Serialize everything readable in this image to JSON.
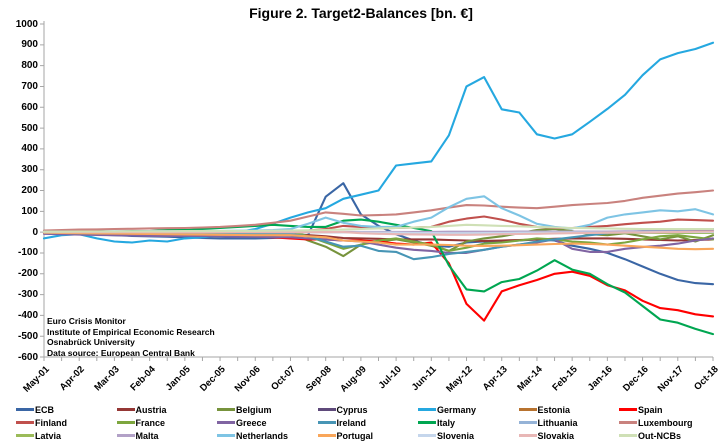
{
  "chart_data": {
    "type": "line",
    "title": "Figure 2. Target2-Balances [bn. €]",
    "xlabel": "",
    "ylabel": "",
    "ylim": [
      -600,
      1000
    ],
    "ytick_step": 100,
    "grid": false,
    "legend_position": "bottom",
    "background": "#FFFFFF",
    "axis_color": "#A6A6A6",
    "text_color": "#000000",
    "x_tick_labels": [
      "May-01",
      "Apr-02",
      "Mar-03",
      "Feb-04",
      "Jan-05",
      "Dec-05",
      "Nov-06",
      "Oct-07",
      "Sep-08",
      "Aug-09",
      "Jul-10",
      "Jun-11",
      "May-12",
      "Apr-13",
      "Mar-14",
      "Feb-15",
      "Jan-16",
      "Dec-16",
      "Nov-17",
      "Oct-18"
    ],
    "sampling_note": "values in bn EUR, sampled at each x tick and at the midpoint between ticks (39 points per series)",
    "series": [
      {
        "name": "ECB",
        "color": "#3A66A5",
        "values": [
          0,
          -5,
          -8,
          -12,
          -15,
          -18,
          -20,
          -22,
          -25,
          -28,
          -30,
          -30,
          -30,
          -28,
          -25,
          -15,
          170,
          235,
          85,
          30,
          -10,
          -40,
          -65,
          -70,
          -50,
          -45,
          -45,
          -40,
          -35,
          -40,
          -65,
          -80,
          -100,
          -130,
          -165,
          -200,
          -230,
          -245,
          -250
        ]
      },
      {
        "name": "Austria",
        "color": "#953735",
        "values": [
          -5,
          -8,
          -10,
          -10,
          -12,
          -12,
          -12,
          -12,
          -12,
          -12,
          -12,
          -12,
          -12,
          -10,
          -10,
          -15,
          -20,
          -28,
          -30,
          -32,
          -35,
          -35,
          -35,
          -38,
          -40,
          -42,
          -40,
          -38,
          -35,
          -32,
          -30,
          -30,
          -30,
          -32,
          -35,
          -38,
          -40,
          -38,
          -35
        ]
      },
      {
        "name": "Belgium",
        "color": "#77933C",
        "values": [
          3,
          4,
          5,
          4,
          3,
          2,
          2,
          3,
          3,
          2,
          2,
          1,
          0,
          -2,
          -5,
          -40,
          -70,
          -115,
          -60,
          -45,
          -35,
          -50,
          -65,
          -90,
          -45,
          -30,
          -20,
          -5,
          10,
          15,
          5,
          -10,
          -15,
          -5,
          -20,
          -35,
          -20,
          -45,
          -15
        ]
      },
      {
        "name": "Cyprus",
        "color": "#5F4A7B",
        "values": [
          0,
          0,
          0,
          0,
          0,
          0,
          0,
          0,
          0,
          0,
          0,
          0,
          0,
          0,
          0,
          0,
          -1,
          -2,
          -2,
          -3,
          -5,
          -6,
          -8,
          -9,
          -10,
          -9,
          -8,
          -6,
          -5,
          -2,
          0,
          1,
          2,
          2,
          3,
          4,
          5,
          5,
          5
        ]
      },
      {
        "name": "Germany",
        "color": "#25A8E0",
        "values": [
          -30,
          -15,
          -10,
          -30,
          -45,
          -50,
          -40,
          -45,
          -30,
          -25,
          -15,
          0,
          15,
          40,
          70,
          95,
          115,
          160,
          180,
          200,
          320,
          330,
          340,
          465,
          700,
          745,
          590,
          575,
          470,
          450,
          470,
          530,
          592,
          660,
          754,
          830,
          860,
          880,
          910
        ]
      },
      {
        "name": "Estonia",
        "color": "#B8732F",
        "values": [
          0,
          0,
          0,
          0,
          0,
          0,
          0,
          0,
          0,
          0,
          0,
          0,
          0,
          0,
          0,
          0,
          0,
          0,
          0,
          0,
          0,
          0,
          -1,
          -2,
          -2,
          -2,
          -1,
          0,
          0,
          1,
          1,
          1,
          1,
          2,
          2,
          2,
          2,
          2,
          2
        ]
      },
      {
        "name": "Spain",
        "color": "#FF0000",
        "values": [
          0,
          3,
          5,
          0,
          -5,
          -8,
          -10,
          -5,
          0,
          -5,
          -10,
          -15,
          -20,
          -25,
          -30,
          -35,
          -35,
          -40,
          -40,
          -45,
          -55,
          -60,
          -50,
          -150,
          -345,
          -425,
          -285,
          -255,
          -230,
          -200,
          -190,
          -210,
          -255,
          -280,
          -330,
          -365,
          -375,
          -395,
          -405
        ]
      },
      {
        "name": "Finland",
        "color": "#C0504D",
        "values": [
          2,
          2,
          3,
          3,
          3,
          4,
          4,
          5,
          5,
          5,
          5,
          5,
          6,
          6,
          5,
          8,
          15,
          30,
          25,
          18,
          20,
          22,
          25,
          50,
          65,
          75,
          60,
          40,
          25,
          20,
          20,
          25,
          30,
          38,
          45,
          50,
          60,
          58,
          55
        ]
      },
      {
        "name": "France",
        "color": "#7DA63E",
        "values": [
          5,
          5,
          4,
          3,
          2,
          0,
          -2,
          -3,
          -5,
          -5,
          -6,
          -8,
          -10,
          -5,
          5,
          -20,
          -50,
          -80,
          -60,
          -40,
          -30,
          -45,
          -60,
          -90,
          -75,
          -55,
          -50,
          -40,
          -30,
          -35,
          -45,
          -50,
          -60,
          -50,
          -35,
          -20,
          -15,
          -25,
          -35
        ]
      },
      {
        "name": "Greece",
        "color": "#8064A2",
        "values": [
          -8,
          -10,
          -12,
          -14,
          -15,
          -16,
          -18,
          -18,
          -18,
          -19,
          -20,
          -22,
          -22,
          -24,
          -25,
          -30,
          -35,
          -40,
          -45,
          -60,
          -75,
          -85,
          -90,
          -100,
          -100,
          -85,
          -70,
          -60,
          -50,
          -35,
          -80,
          -95,
          -95,
          -80,
          -72,
          -65,
          -55,
          -40,
          -30
        ]
      },
      {
        "name": "Ireland",
        "color": "#4795B5",
        "values": [
          -3,
          -4,
          -5,
          -5,
          -6,
          -6,
          -7,
          -8,
          -8,
          -9,
          -10,
          -10,
          -10,
          -10,
          -10,
          -20,
          -45,
          -70,
          -65,
          -90,
          -95,
          -130,
          -120,
          -105,
          -95,
          -85,
          -70,
          -60,
          -45,
          -35,
          -25,
          -15,
          -5,
          0,
          5,
          5,
          10,
          15,
          15
        ]
      },
      {
        "name": "Italy",
        "color": "#00A651",
        "values": [
          5,
          8,
          10,
          5,
          0,
          5,
          5,
          10,
          10,
          15,
          20,
          25,
          30,
          35,
          30,
          25,
          25,
          55,
          60,
          50,
          35,
          20,
          5,
          -160,
          -275,
          -285,
          -240,
          -225,
          -185,
          -135,
          -180,
          -200,
          -250,
          -290,
          -355,
          -420,
          -435,
          -465,
          -490
        ]
      },
      {
        "name": "Lithuania",
        "color": "#95B3D7",
        "values": [
          0,
          0,
          0,
          0,
          0,
          0,
          0,
          0,
          0,
          0,
          0,
          0,
          0,
          0,
          0,
          0,
          0,
          0,
          0,
          0,
          0,
          0,
          0,
          0,
          0,
          0,
          0,
          0,
          0,
          0,
          -2,
          -3,
          -3,
          -3,
          -3,
          -4,
          -4,
          -4,
          -4
        ]
      },
      {
        "name": "Luxembourg",
        "color": "#C9827E",
        "values": [
          8,
          10,
          12,
          13,
          15,
          16,
          18,
          19,
          20,
          22,
          25,
          30,
          35,
          45,
          55,
          75,
          95,
          88,
          80,
          82,
          85,
          95,
          105,
          118,
          130,
          128,
          122,
          118,
          115,
          122,
          130,
          135,
          140,
          150,
          165,
          175,
          185,
          192,
          200
        ]
      },
      {
        "name": "Latvia",
        "color": "#9BBB59",
        "values": [
          0,
          0,
          0,
          0,
          0,
          0,
          0,
          0,
          0,
          0,
          0,
          0,
          0,
          0,
          0,
          0,
          0,
          0,
          0,
          0,
          0,
          0,
          0,
          0,
          0,
          0,
          0,
          0,
          -1,
          -1,
          -2,
          -2,
          -3,
          -3,
          -3,
          -4,
          -4,
          -4,
          -4
        ]
      },
      {
        "name": "Malta",
        "color": "#B2A1C7",
        "values": [
          0,
          0,
          0,
          0,
          0,
          0,
          0,
          0,
          0,
          0,
          0,
          0,
          0,
          0,
          0,
          0,
          0,
          1,
          1,
          1,
          1,
          1,
          1,
          2,
          2,
          2,
          2,
          3,
          3,
          3,
          3,
          3,
          3,
          4,
          4,
          4,
          4,
          4,
          4
        ]
      },
      {
        "name": "Netherlands",
        "color": "#7EC4E4",
        "values": [
          2,
          2,
          3,
          3,
          4,
          4,
          5,
          5,
          5,
          6,
          6,
          7,
          8,
          10,
          15,
          40,
          70,
          45,
          30,
          25,
          25,
          50,
          70,
          120,
          160,
          172,
          115,
          80,
          40,
          25,
          18,
          35,
          70,
          85,
          95,
          105,
          100,
          110,
          85
        ]
      },
      {
        "name": "Portugal",
        "color": "#F9A65A",
        "values": [
          -3,
          -4,
          -5,
          -6,
          -7,
          -8,
          -9,
          -10,
          -11,
          -12,
          -13,
          -14,
          -15,
          -15,
          -15,
          -20,
          -25,
          -40,
          -45,
          -50,
          -60,
          -60,
          -60,
          -62,
          -65,
          -66,
          -65,
          -63,
          -60,
          -57,
          -55,
          -57,
          -60,
          -65,
          -70,
          -75,
          -80,
          -82,
          -80
        ]
      },
      {
        "name": "Slovenia",
        "color": "#C5D6EC",
        "values": [
          0,
          0,
          0,
          0,
          0,
          0,
          0,
          0,
          0,
          0,
          0,
          0,
          0,
          0,
          0,
          -1,
          -1,
          -2,
          -2,
          -3,
          -3,
          -4,
          -4,
          -5,
          -5,
          -4,
          -4,
          -3,
          -3,
          -2,
          -2,
          -2,
          -2,
          -1,
          -1,
          0,
          0,
          0,
          0
        ]
      },
      {
        "name": "Slovakia",
        "color": "#E8B7B6",
        "values": [
          0,
          0,
          0,
          0,
          0,
          0,
          0,
          0,
          0,
          0,
          0,
          0,
          0,
          0,
          0,
          0,
          0,
          0,
          -5,
          -8,
          -10,
          -11,
          -12,
          -13,
          -13,
          -12,
          -10,
          -9,
          -8,
          -6,
          -5,
          -4,
          -3,
          -2,
          -2,
          -1,
          0,
          2,
          3
        ]
      },
      {
        "name": "Out-NCBs",
        "color": "#CFE0B6",
        "values": [
          2,
          2,
          3,
          3,
          3,
          4,
          4,
          4,
          5,
          5,
          5,
          6,
          6,
          7,
          8,
          9,
          10,
          12,
          15,
          18,
          20,
          22,
          25,
          30,
          35,
          33,
          30,
          28,
          25,
          22,
          20,
          19,
          18,
          16,
          15,
          15,
          15,
          15,
          15
        ]
      }
    ],
    "notable_points": [
      {
        "series": "Germany",
        "x": "Aug-12",
        "value": 755
      },
      {
        "series": "Germany",
        "x": "Oct-18",
        "value": 910
      },
      {
        "series": "ECB",
        "x": "Oct-08",
        "value": 235
      },
      {
        "series": "Spain",
        "x": "Aug-12",
        "value": -430
      },
      {
        "series": "Italy",
        "x": "Oct-18",
        "value": -490
      },
      {
        "series": "ECB",
        "x": "Oct-18",
        "value": -250
      }
    ]
  },
  "annotation": {
    "lines": [
      "Euro Crisis Monitor",
      "Institute of Empirical Economic Research",
      "Osnabrück University",
      "Data source: European Central Bank"
    ]
  }
}
